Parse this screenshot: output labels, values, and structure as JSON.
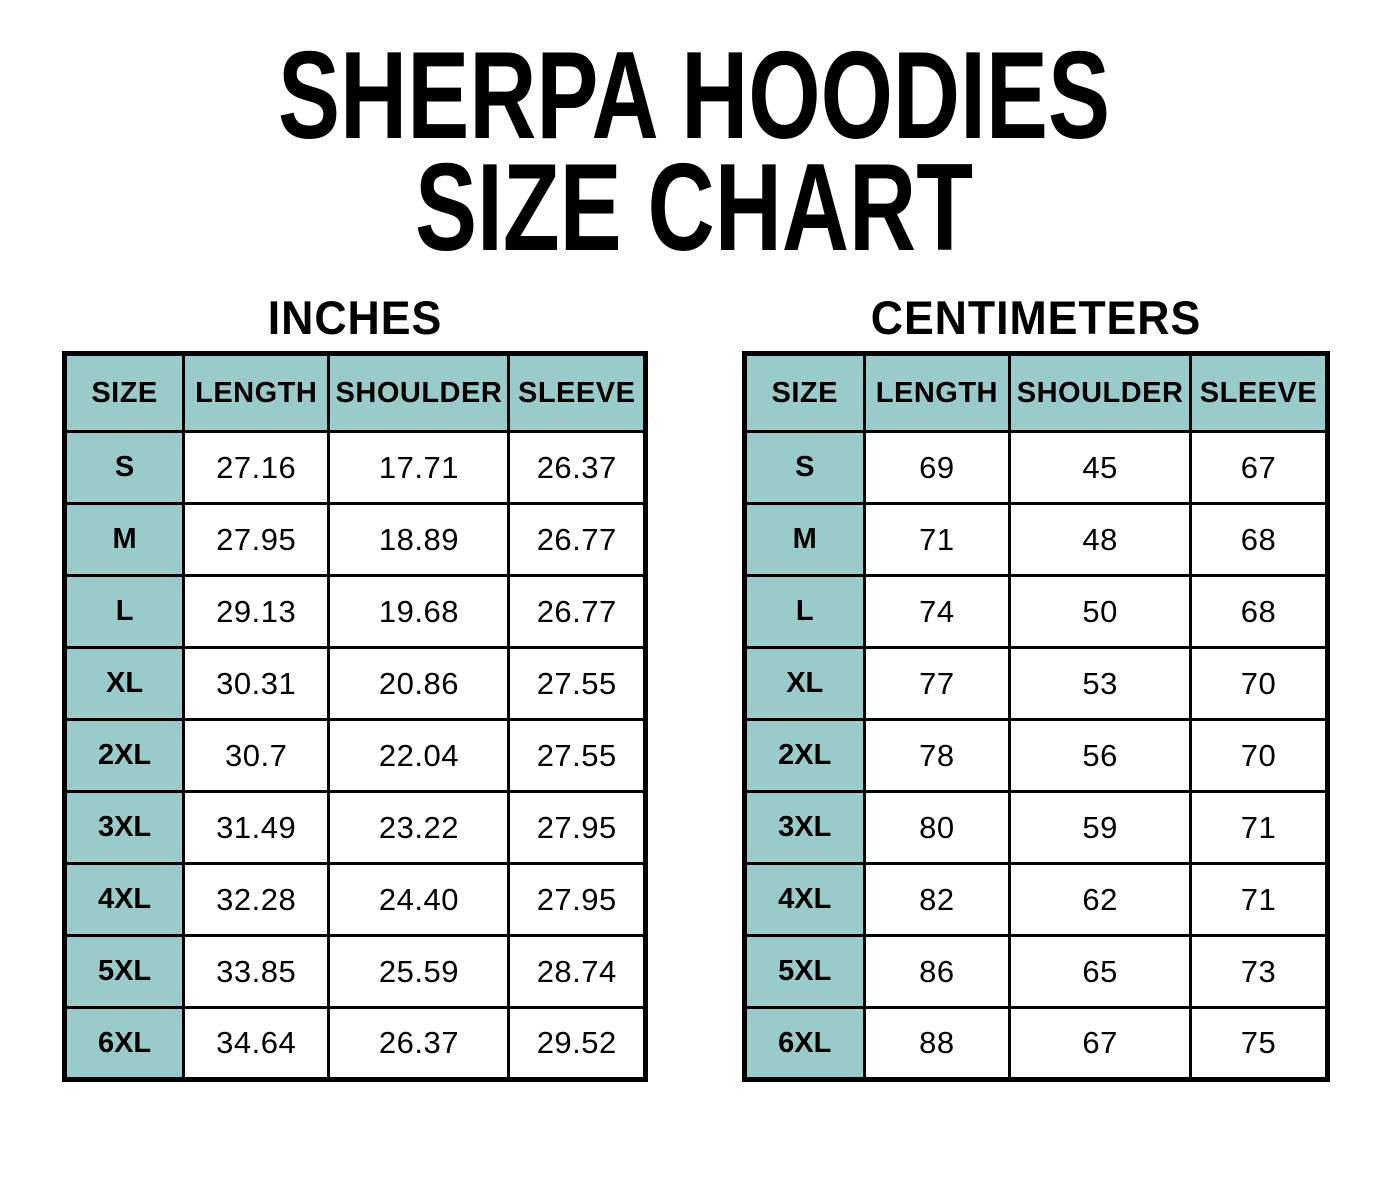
{
  "title": {
    "line1": "SHERPA HOODIES",
    "line2": "SIZE CHART"
  },
  "colors": {
    "header_fill": "#98CBCA",
    "border": "#000000",
    "text": "#000000",
    "cell_fill": "#ffffff",
    "page_background": "#ffffff"
  },
  "tables": [
    {
      "unit_label": "INCHES",
      "columns": [
        "SIZE",
        "LENGTH",
        "SHOULDER",
        "SLEEVE"
      ],
      "rows": [
        [
          "S",
          "27.16",
          "17.71",
          "26.37"
        ],
        [
          "M",
          "27.95",
          "18.89",
          "26.77"
        ],
        [
          "L",
          "29.13",
          "19.68",
          "26.77"
        ],
        [
          "XL",
          "30.31",
          "20.86",
          "27.55"
        ],
        [
          "2XL",
          "30.7",
          "22.04",
          "27.55"
        ],
        [
          "3XL",
          "31.49",
          "23.22",
          "27.95"
        ],
        [
          "4XL",
          "32.28",
          "24.40",
          "27.95"
        ],
        [
          "5XL",
          "33.85",
          "25.59",
          "28.74"
        ],
        [
          "6XL",
          "34.64",
          "26.37",
          "29.52"
        ]
      ]
    },
    {
      "unit_label": "CENTIMETERS",
      "columns": [
        "SIZE",
        "LENGTH",
        "SHOULDER",
        "SLEEVE"
      ],
      "rows": [
        [
          "S",
          "69",
          "45",
          "67"
        ],
        [
          "M",
          "71",
          "48",
          "68"
        ],
        [
          "L",
          "74",
          "50",
          "68"
        ],
        [
          "XL",
          "77",
          "53",
          "70"
        ],
        [
          "2XL",
          "78",
          "56",
          "70"
        ],
        [
          "3XL",
          "80",
          "59",
          "71"
        ],
        [
          "4XL",
          "82",
          "62",
          "71"
        ],
        [
          "5XL",
          "86",
          "65",
          "73"
        ],
        [
          "6XL",
          "88",
          "67",
          "75"
        ]
      ]
    }
  ]
}
